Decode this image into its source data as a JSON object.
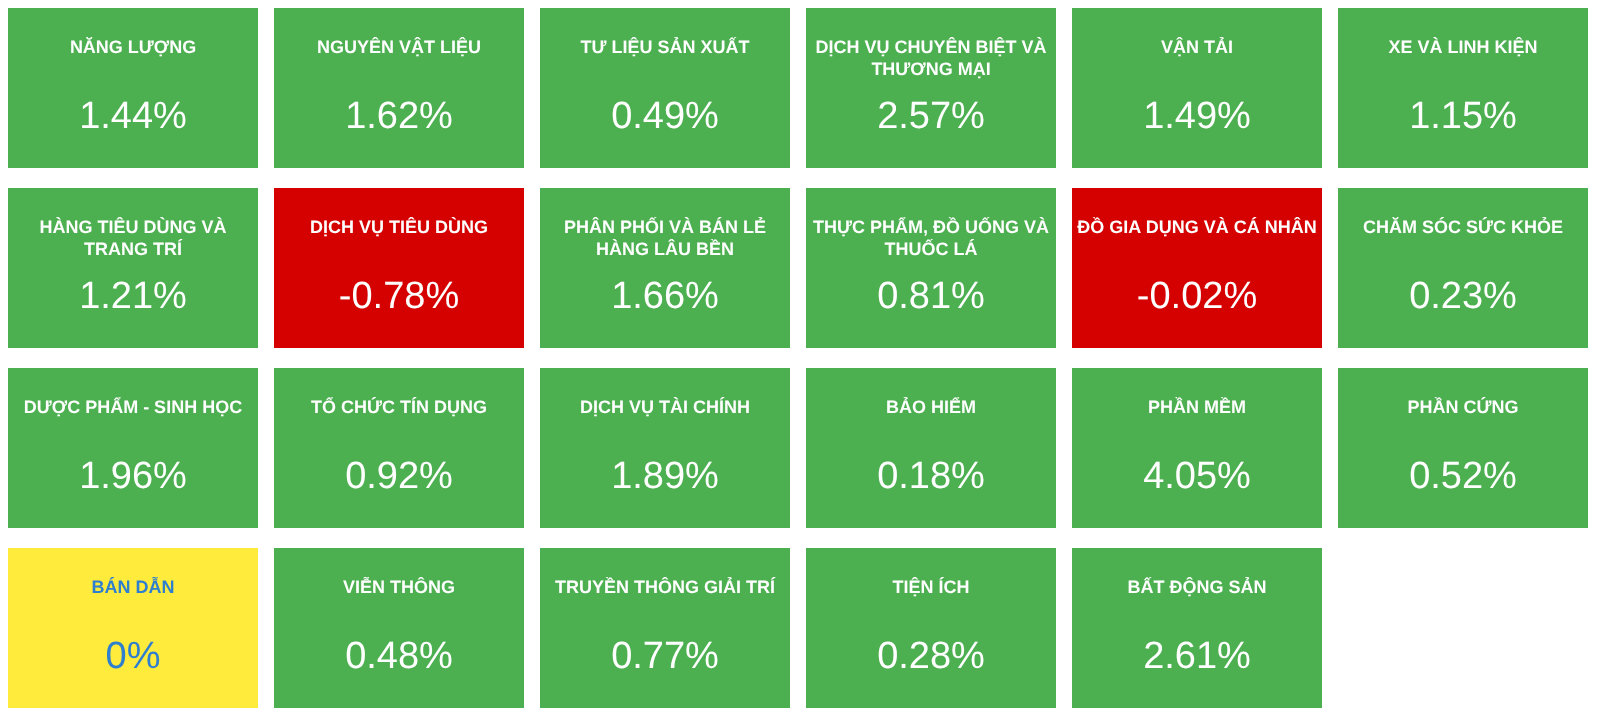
{
  "chart_data": {
    "type": "other",
    "categories": [
      "NĂNG LƯỢNG",
      "NGUYÊN VẬT LIỆU",
      "TƯ LIỆU SẢN XUẤT",
      "DỊCH VỤ CHUYÊN BIỆT VÀ THƯƠNG MẠI",
      "VẬN TẢI",
      "XE VÀ LINH KIỆN",
      "HÀNG TIÊU DÙNG VÀ TRANG TRÍ",
      "DỊCH VỤ TIÊU DÙNG",
      "PHÂN PHỐI VÀ BÁN LẺ HÀNG LÂU BỀN",
      "THỰC PHẨM, ĐỒ UỐNG VÀ THUỐC LÁ",
      "ĐỒ GIA DỤNG VÀ CÁ NHÂN",
      "CHĂM SÓC SỨC KHỎE",
      "DƯỢC PHẨM - SINH HỌC",
      "TỔ CHỨC TÍN DỤNG",
      "DỊCH VỤ TÀI CHÍNH",
      "BẢO HIỂM",
      "PHẦN MỀM",
      "PHẦN CỨNG",
      "BÁN DẪN",
      "VIỄN THÔNG",
      "TRUYỀN THÔNG GIẢI TRÍ",
      "TIỆN ÍCH",
      "BẤT ĐỘNG SẢN"
    ],
    "values": [
      1.44,
      1.62,
      0.49,
      2.57,
      1.49,
      1.15,
      1.21,
      -0.78,
      1.66,
      0.81,
      -0.02,
      0.23,
      1.96,
      0.92,
      1.89,
      0.18,
      4.05,
      0.52,
      0,
      0.48,
      0.77,
      0.28,
      2.61
    ],
    "value_labels": [
      "1.44%",
      "1.62%",
      "0.49%",
      "2.57%",
      "1.49%",
      "1.15%",
      "1.21%",
      "-0.78%",
      "1.66%",
      "0.81%",
      "-0.02%",
      "0.23%",
      "1.96%",
      "0.92%",
      "1.89%",
      "0.18%",
      "4.05%",
      "0.52%",
      "0%",
      "0.48%",
      "0.77%",
      "0.28%",
      "2.61%"
    ],
    "colors": [
      "#4caf50",
      "#4caf50",
      "#4caf50",
      "#4caf50",
      "#4caf50",
      "#4caf50",
      "#4caf50",
      "#d50000",
      "#4caf50",
      "#4caf50",
      "#d50000",
      "#4caf50",
      "#4caf50",
      "#4caf50",
      "#4caf50",
      "#4caf50",
      "#4caf50",
      "#4caf50",
      "#ffeb3b",
      "#4caf50",
      "#4caf50",
      "#4caf50",
      "#4caf50"
    ]
  }
}
